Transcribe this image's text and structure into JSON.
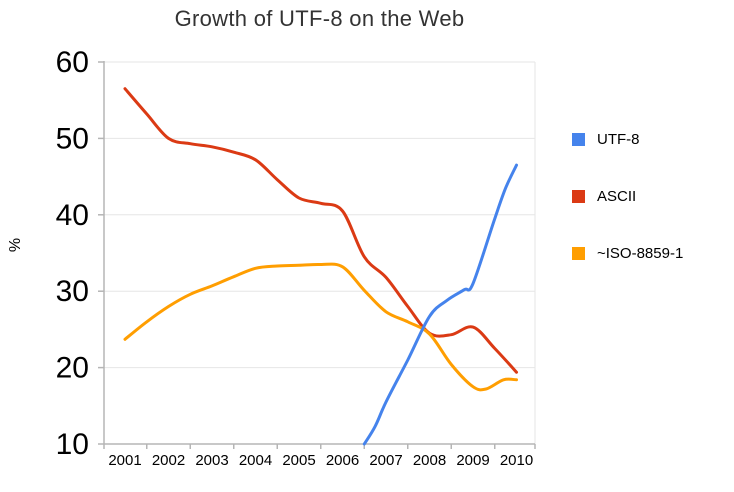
{
  "chart_data": {
    "type": "line",
    "title": "Growth of UTF-8 on the Web",
    "xlabel": "",
    "ylabel": "%",
    "ylim": [
      10,
      60
    ],
    "xlim": [
      2001,
      2010
    ],
    "y_ticks": [
      10,
      20,
      30,
      40,
      50,
      60
    ],
    "x_ticks": [
      2001,
      2002,
      2003,
      2004,
      2005,
      2006,
      2007,
      2008,
      2009,
      2010
    ],
    "grid": true,
    "legend_position": "right",
    "colors": {
      "grid": "#e6e6e6",
      "axis": "#b5b5b5",
      "text": "#000000",
      "title": "#333333"
    },
    "series": [
      {
        "name": "UTF-8",
        "color": "#4583ec",
        "points": [
          [
            2006.5,
            10
          ],
          [
            2006.75,
            12.3
          ],
          [
            2007,
            15.5
          ],
          [
            2007.5,
            21
          ],
          [
            2008,
            26.7
          ],
          [
            2008.4,
            28.8
          ],
          [
            2008.8,
            30.2
          ],
          [
            2009,
            31
          ],
          [
            2009.5,
            39.5
          ],
          [
            2009.75,
            43.5
          ],
          [
            2010,
            46.5
          ]
        ]
      },
      {
        "name": "ASCII",
        "color": "#db3a14",
        "points": [
          [
            2001,
            56.5
          ],
          [
            2001.5,
            53.2
          ],
          [
            2002,
            50
          ],
          [
            2002.5,
            49.3
          ],
          [
            2003,
            48.9
          ],
          [
            2003.5,
            48.2
          ],
          [
            2004,
            47.2
          ],
          [
            2004.5,
            44.6
          ],
          [
            2005,
            42.2
          ],
          [
            2005.5,
            41.5
          ],
          [
            2006,
            40.5
          ],
          [
            2006.5,
            34.5
          ],
          [
            2007,
            31.8
          ],
          [
            2007.5,
            28
          ],
          [
            2008,
            24.5
          ],
          [
            2008.5,
            24.3
          ],
          [
            2009,
            25.3
          ],
          [
            2009.5,
            22.5
          ],
          [
            2010,
            19.4
          ]
        ]
      },
      {
        "name": "~ISO-8859-1",
        "color": "#ff9e01",
        "points": [
          [
            2001,
            23.7
          ],
          [
            2001.5,
            26
          ],
          [
            2002,
            28
          ],
          [
            2002.5,
            29.6
          ],
          [
            2003,
            30.7
          ],
          [
            2003.5,
            31.9
          ],
          [
            2004,
            33
          ],
          [
            2004.5,
            33.3
          ],
          [
            2005,
            33.4
          ],
          [
            2005.5,
            33.5
          ],
          [
            2006,
            33.2
          ],
          [
            2006.5,
            30.1
          ],
          [
            2007,
            27.3
          ],
          [
            2007.5,
            26
          ],
          [
            2008,
            24.4
          ],
          [
            2008.5,
            20.4
          ],
          [
            2009,
            17.5
          ],
          [
            2009.3,
            17.2
          ],
          [
            2009.7,
            18.4
          ],
          [
            2010,
            18.4
          ]
        ]
      }
    ]
  }
}
